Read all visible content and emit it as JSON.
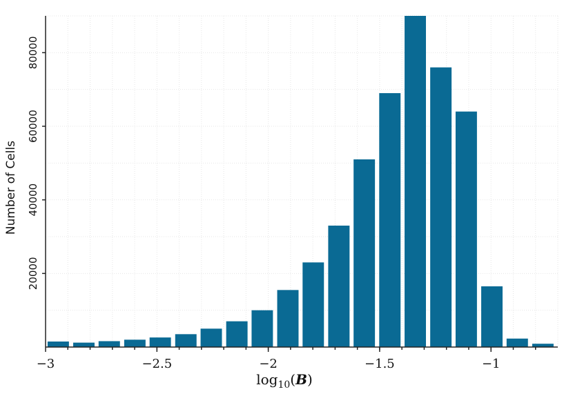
{
  "chart_data": {
    "type": "bar",
    "xlabel": {
      "main": "log",
      "sub": "10",
      "open": "(",
      "var": "B",
      "close": ")"
    },
    "ylabel": "Number of Cells",
    "xlim": [
      -3,
      -0.7
    ],
    "ylim": [
      0,
      90000
    ],
    "xticks": [
      {
        "value": -3,
        "label": "−3"
      },
      {
        "value": -2.5,
        "label": "−2.5"
      },
      {
        "value": -2,
        "label": "−2"
      },
      {
        "value": -1.5,
        "label": "−1.5"
      },
      {
        "value": -1,
        "label": "−1"
      }
    ],
    "yticks": [
      {
        "value": 20000,
        "label": "20000"
      },
      {
        "value": 40000,
        "label": "40000"
      },
      {
        "value": 60000,
        "label": "60000"
      },
      {
        "value": 80000,
        "label": "80000"
      }
    ],
    "grid": true,
    "bin_width": 0.1145,
    "bars": [
      {
        "x": -2.943,
        "value": 1500
      },
      {
        "x": -2.828,
        "value": 1200
      },
      {
        "x": -2.714,
        "value": 1600
      },
      {
        "x": -2.599,
        "value": 2000
      },
      {
        "x": -2.485,
        "value": 2600
      },
      {
        "x": -2.37,
        "value": 3500
      },
      {
        "x": -2.256,
        "value": 5000
      },
      {
        "x": -2.141,
        "value": 7000
      },
      {
        "x": -2.027,
        "value": 10000
      },
      {
        "x": -1.912,
        "value": 15500
      },
      {
        "x": -1.798,
        "value": 23000
      },
      {
        "x": -1.683,
        "value": 33000
      },
      {
        "x": -1.569,
        "value": 51000
      },
      {
        "x": -1.454,
        "value": 69000
      },
      {
        "x": -1.34,
        "value": 90000
      },
      {
        "x": -1.225,
        "value": 76000
      },
      {
        "x": -1.111,
        "value": 64000
      },
      {
        "x": -0.996,
        "value": 16500
      },
      {
        "x": -0.882,
        "value": 2300
      },
      {
        "x": -0.767,
        "value": 900
      }
    ],
    "colors": {
      "bar": "#0a6a94"
    }
  }
}
